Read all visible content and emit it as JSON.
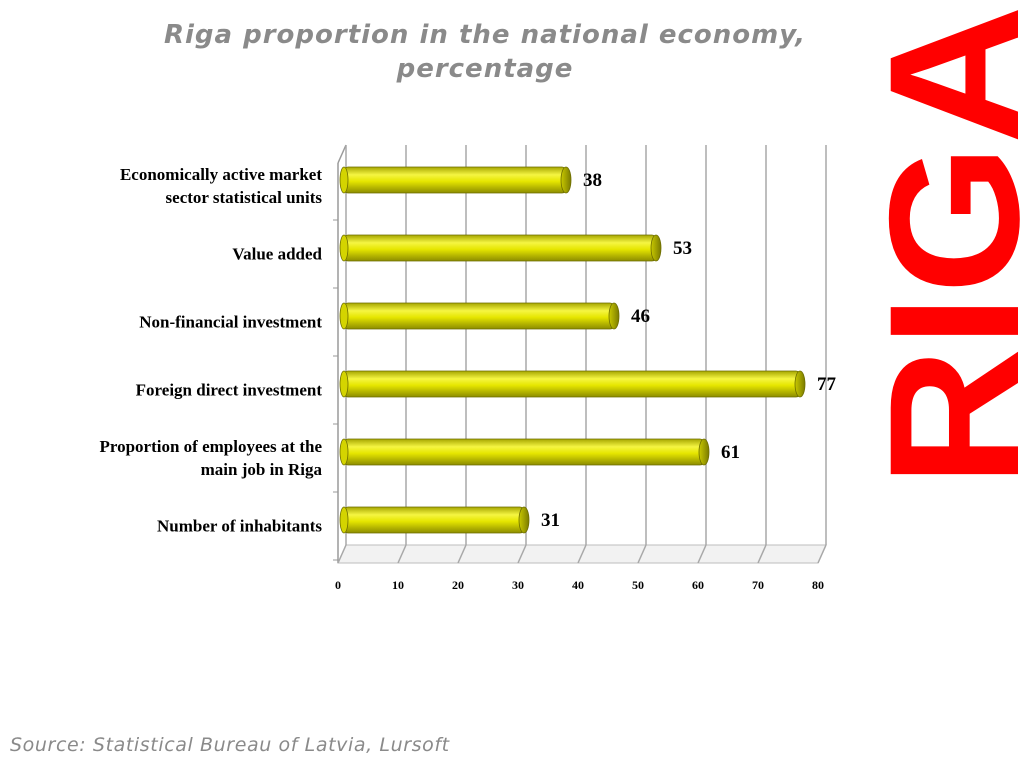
{
  "chart_data": {
    "type": "bar",
    "orientation": "horizontal",
    "title": "Riga proportion in the national economy, percentage",
    "title_lines": [
      "Riga proportion in the national economy,",
      "percentage"
    ],
    "categories": [
      "Economically active market sector statistical units",
      "Value added",
      "Non-financial investment",
      "Foreign direct investment",
      "Proportion of employees at the main job in Riga",
      "Number of inhabitants"
    ],
    "category_lines": [
      [
        "Economically active market",
        "sector statistical units"
      ],
      [
        "Value added"
      ],
      [
        "Non-financial investment"
      ],
      [
        "Foreign direct investment"
      ],
      [
        "Proportion of employees at the",
        "main job in Riga"
      ],
      [
        "Number of inhabitants"
      ]
    ],
    "values": [
      38,
      53,
      46,
      77,
      61,
      31
    ],
    "xlim": [
      0,
      80
    ],
    "x_ticks": [
      0,
      10,
      20,
      30,
      40,
      50,
      60,
      70,
      80
    ],
    "xlabel": "",
    "ylabel": "",
    "grid": true,
    "legend": "none",
    "bar_color": "#e6e600"
  },
  "watermark_text": "RIGA",
  "watermark_color": "#ff0000",
  "source": "Source: Statistical Bureau of Latvia, Lursoft"
}
